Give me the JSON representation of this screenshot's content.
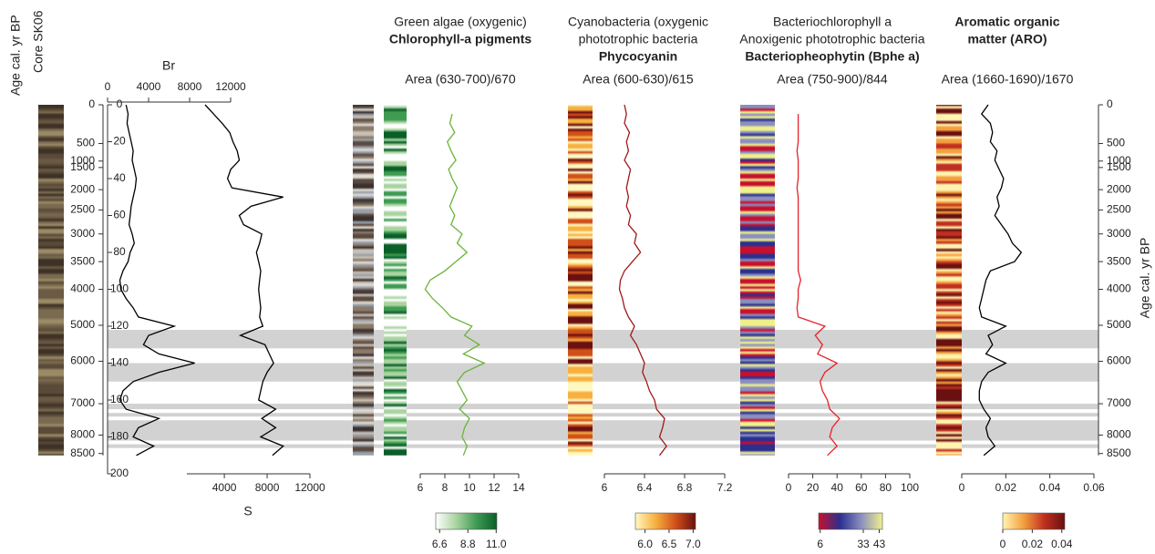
{
  "chart_data": {
    "type": "line",
    "side_labels": {
      "age_title": "Age cal. yr BP",
      "core": "Core SK06"
    },
    "ylim": [
      0,
      200
    ],
    "yticks": [
      0,
      20,
      40,
      60,
      80,
      100,
      120,
      140,
      160,
      180,
      200
    ],
    "age_ticks": [
      0,
      500,
      1000,
      1500,
      2000,
      2500,
      3000,
      3500,
      4000,
      5000,
      6000,
      7000,
      8000,
      8500
    ],
    "age_tick_depths": [
      0,
      21,
      30.5,
      34,
      46,
      57,
      70,
      85,
      100,
      119.5,
      139,
      162,
      179,
      189
    ],
    "depth": [
      0,
      5,
      10,
      15,
      20,
      25,
      30,
      35,
      40,
      45,
      50,
      55,
      60,
      65,
      70,
      75,
      80,
      85,
      90,
      95,
      100,
      105,
      110,
      115,
      120,
      125,
      130,
      135,
      140,
      145,
      150,
      155,
      160,
      165,
      170,
      175,
      180,
      185,
      190
    ],
    "shaded_intervals": [
      [
        122,
        132
      ],
      [
        140,
        150
      ],
      [
        162,
        165
      ],
      [
        167,
        169
      ],
      [
        171,
        182
      ],
      [
        184,
        186
      ]
    ],
    "panels": [
      {
        "axis_title": "Br",
        "xlim": [
          0,
          12000
        ],
        "xticks": [
          0,
          4000,
          8000,
          12000
        ],
        "color": "#000000",
        "values": [
          1800,
          2000,
          1900,
          2100,
          2300,
          2500,
          2400,
          2600,
          2800,
          2700,
          2500,
          2300,
          2200,
          2100,
          2400,
          2600,
          2200,
          2000,
          1500,
          1200,
          1300,
          1800,
          2500,
          3000,
          6500,
          4000,
          3500,
          5000,
          8500,
          5000,
          2500,
          1500,
          1200,
          1800,
          5000,
          3000,
          2500,
          4500,
          2800
        ]
      },
      {
        "axis_title": "S",
        "xlim": [
          500,
          12000
        ],
        "xticks": [
          4000,
          8000,
          12000
        ],
        "color": "#000000",
        "values": [
          2200,
          3000,
          3800,
          4500,
          4800,
          5200,
          5400,
          4600,
          4300,
          4700,
          9500,
          6500,
          5400,
          5800,
          7500,
          7300,
          7000,
          7200,
          7400,
          7300,
          7200,
          7300,
          7400,
          7300,
          7600,
          5500,
          7800,
          8200,
          8600,
          8000,
          7600,
          7400,
          7200,
          8800,
          7500,
          8800,
          7400,
          9500,
          8500
        ]
      },
      {
        "title_lines": [
          "Green algae (oxygenic)"
        ],
        "bold_lines": [
          "Chlorophyll-a pigments"
        ],
        "subtitle": "Area (630-700)/670",
        "xlim": [
          6,
          14
        ],
        "xticks": [
          6,
          8,
          10,
          12,
          14
        ],
        "color": "#6bb33a",
        "values": [
          null,
          8.6,
          8.4,
          8.8,
          8.2,
          8.5,
          8.9,
          8.3,
          8.6,
          9.0,
          8.7,
          8.4,
          8.8,
          8.5,
          9.4,
          9.0,
          9.8,
          8.9,
          8.0,
          6.8,
          6.4,
          7.0,
          7.8,
          8.5,
          10.2,
          9.6,
          10.8,
          9.5,
          11.2,
          9.6,
          9.0,
          9.4,
          9.8,
          9.2,
          10.0,
          9.6,
          9.4,
          9.8,
          9.5
        ],
        "colorbar": {
          "colors": [
            "#ffffff",
            "#a9d4a0",
            "#3f9a52",
            "#0a5e28"
          ],
          "clim": [
            6.3,
            11.05
          ],
          "ticks": [
            6.6,
            8.8,
            {
              "value": 11,
              "label": "11.0"
            }
          ]
        }
      },
      {
        "title_lines": [
          "Cyanobacteria (oxygenic",
          "phototrophic bacteria"
        ],
        "bold_lines": [
          "Phycocyanin"
        ],
        "subtitle": "Area (600-630)/615",
        "xlim": [
          6,
          7.2
        ],
        "xticks": [
          6,
          6.4,
          6.8,
          7.2
        ],
        "color": "#a01818",
        "values": [
          6.2,
          6.22,
          6.2,
          6.25,
          6.22,
          6.24,
          6.2,
          6.26,
          6.24,
          6.22,
          6.24,
          6.22,
          6.26,
          6.24,
          6.32,
          6.3,
          6.36,
          6.28,
          6.2,
          6.16,
          6.15,
          6.18,
          6.2,
          6.24,
          6.3,
          6.26,
          6.32,
          6.36,
          6.4,
          6.38,
          6.42,
          6.45,
          6.5,
          6.52,
          6.6,
          6.58,
          6.55,
          6.62,
          6.55
        ],
        "colorbar": {
          "colors": [
            "#fff8c0",
            "#f7b040",
            "#d0501a",
            "#6a1010"
          ],
          "clim": [
            5.8,
            7.05
          ],
          "ticks": [
            {
              "value": 6,
              "label": "6.0"
            },
            6.5,
            {
              "value": 7,
              "label": "7.0"
            }
          ]
        }
      },
      {
        "title_lines": [
          "Bacteriochlorophyll a",
          "Anoxigenic phototrophic bacteria"
        ],
        "bold_lines": [
          "Bacteriopheophytin (Bphe a)"
        ],
        "subtitle": "Area (750-900)/844",
        "xlim": [
          0,
          100
        ],
        "xticks": [
          0,
          20,
          40,
          60,
          80,
          100
        ],
        "color": "#e8202a",
        "values": [
          null,
          8,
          8,
          8,
          8,
          7,
          8,
          8,
          8,
          7,
          8,
          8,
          8,
          8,
          8,
          8,
          8,
          8,
          8,
          10,
          8,
          8,
          7,
          8,
          30,
          22,
          28,
          24,
          40,
          30,
          26,
          28,
          32,
          34,
          42,
          36,
          34,
          40,
          32
        ],
        "colorbar": {
          "colors": [
            "#c8102e",
            "#2b2f8f",
            "#8a8fc0",
            "#f0f08a"
          ],
          "clim": [
            5,
            45
          ],
          "ticks": [
            6,
            33,
            43
          ]
        }
      },
      {
        "bold_lines": [
          "Aromatic organic",
          "matter (ARO)"
        ],
        "subtitle": "Area (1660-1690)/1670",
        "xlim": [
          0,
          0.06
        ],
        "xticks": [
          0,
          0.02,
          0.04,
          0.06
        ],
        "color": "#000000",
        "values": [
          0.012,
          0.009,
          0.013,
          0.014,
          0.013,
          0.016,
          0.015,
          0.017,
          0.019,
          0.018,
          0.016,
          0.017,
          0.015,
          0.018,
          0.021,
          0.023,
          0.027,
          0.024,
          0.013,
          0.011,
          0.01,
          0.009,
          0.008,
          0.009,
          0.02,
          0.012,
          0.014,
          0.011,
          0.02,
          0.012,
          0.009,
          0.008,
          0.008,
          0.01,
          0.013,
          0.011,
          0.012,
          0.015,
          0.01
        ],
        "colorbar": {
          "colors": [
            "#fff4b0",
            "#f4a040",
            "#c03020",
            "#6a1010"
          ],
          "clim": [
            0,
            0.042
          ],
          "ticks": [
            0,
            0.02,
            0.04
          ]
        }
      }
    ]
  }
}
